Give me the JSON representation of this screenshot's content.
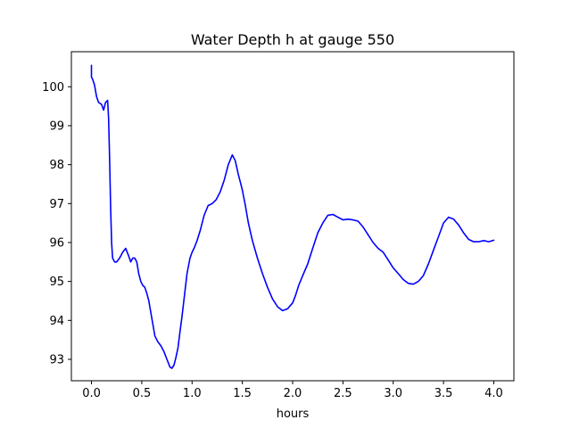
{
  "chart_data": {
    "type": "line",
    "title": "Water Depth h at gauge 550",
    "xlabel": "hours",
    "ylabel": "",
    "xlim": [
      -0.2,
      4.2
    ],
    "ylim": [
      92.45,
      100.9
    ],
    "xticks": [
      0.0,
      0.5,
      1.0,
      1.5,
      2.0,
      2.5,
      3.0,
      3.5,
      4.0
    ],
    "xtick_labels": [
      "0.0",
      "0.5",
      "1.0",
      "1.5",
      "2.0",
      "2.5",
      "3.0",
      "3.5",
      "4.0"
    ],
    "yticks": [
      93,
      94,
      95,
      96,
      97,
      98,
      99,
      100
    ],
    "ytick_labels": [
      "93",
      "94",
      "95",
      "96",
      "97",
      "98",
      "99",
      "100"
    ],
    "grid": false,
    "series": [
      {
        "color": "#0000ff",
        "x": [
          0.0,
          0.0,
          0.01,
          0.03,
          0.05,
          0.07,
          0.1,
          0.12,
          0.14,
          0.16,
          0.17,
          0.18,
          0.19,
          0.2,
          0.21,
          0.23,
          0.25,
          0.28,
          0.31,
          0.34,
          0.37,
          0.39,
          0.41,
          0.43,
          0.45,
          0.47,
          0.49,
          0.51,
          0.53,
          0.55,
          0.57,
          0.6,
          0.63,
          0.66,
          0.69,
          0.72,
          0.75,
          0.78,
          0.8,
          0.82,
          0.84,
          0.86,
          0.88,
          0.9,
          0.92,
          0.95,
          0.98,
          1.0,
          1.02,
          1.05,
          1.08,
          1.12,
          1.16,
          1.2,
          1.24,
          1.28,
          1.32,
          1.36,
          1.4,
          1.43,
          1.46,
          1.48,
          1.5,
          1.53,
          1.56,
          1.6,
          1.65,
          1.7,
          1.75,
          1.8,
          1.85,
          1.9,
          1.95,
          2.0,
          2.03,
          2.06,
          2.1,
          2.15,
          2.2,
          2.25,
          2.3,
          2.35,
          2.4,
          2.45,
          2.5,
          2.55,
          2.6,
          2.65,
          2.7,
          2.75,
          2.8,
          2.85,
          2.9,
          2.95,
          3.0,
          3.05,
          3.1,
          3.15,
          3.2,
          3.25,
          3.3,
          3.35,
          3.4,
          3.45,
          3.5,
          3.55,
          3.6,
          3.65,
          3.7,
          3.75,
          3.8,
          3.85,
          3.9,
          3.95,
          4.0
        ],
        "y": [
          100.55,
          100.25,
          100.2,
          100.05,
          99.75,
          99.6,
          99.55,
          99.4,
          99.6,
          99.65,
          99.2,
          98.2,
          96.9,
          96.0,
          95.6,
          95.5,
          95.5,
          95.6,
          95.75,
          95.85,
          95.65,
          95.5,
          95.6,
          95.6,
          95.5,
          95.2,
          95.0,
          94.9,
          94.85,
          94.7,
          94.5,
          94.05,
          93.6,
          93.45,
          93.35,
          93.2,
          93.0,
          92.8,
          92.77,
          92.85,
          93.05,
          93.3,
          93.7,
          94.1,
          94.55,
          95.2,
          95.6,
          95.75,
          95.85,
          96.05,
          96.3,
          96.7,
          96.95,
          97.0,
          97.1,
          97.3,
          97.6,
          98.0,
          98.25,
          98.1,
          97.75,
          97.55,
          97.35,
          96.95,
          96.5,
          96.05,
          95.6,
          95.2,
          94.85,
          94.55,
          94.35,
          94.25,
          94.3,
          94.45,
          94.65,
          94.9,
          95.15,
          95.45,
          95.85,
          96.25,
          96.5,
          96.7,
          96.72,
          96.65,
          96.58,
          96.6,
          96.58,
          96.55,
          96.4,
          96.2,
          96.0,
          95.85,
          95.75,
          95.55,
          95.35,
          95.2,
          95.05,
          94.95,
          94.93,
          95.0,
          95.15,
          95.45,
          95.8,
          96.15,
          96.5,
          96.65,
          96.6,
          96.45,
          96.25,
          96.08,
          96.02,
          96.02,
          96.05,
          96.02,
          96.06
        ]
      }
    ]
  }
}
